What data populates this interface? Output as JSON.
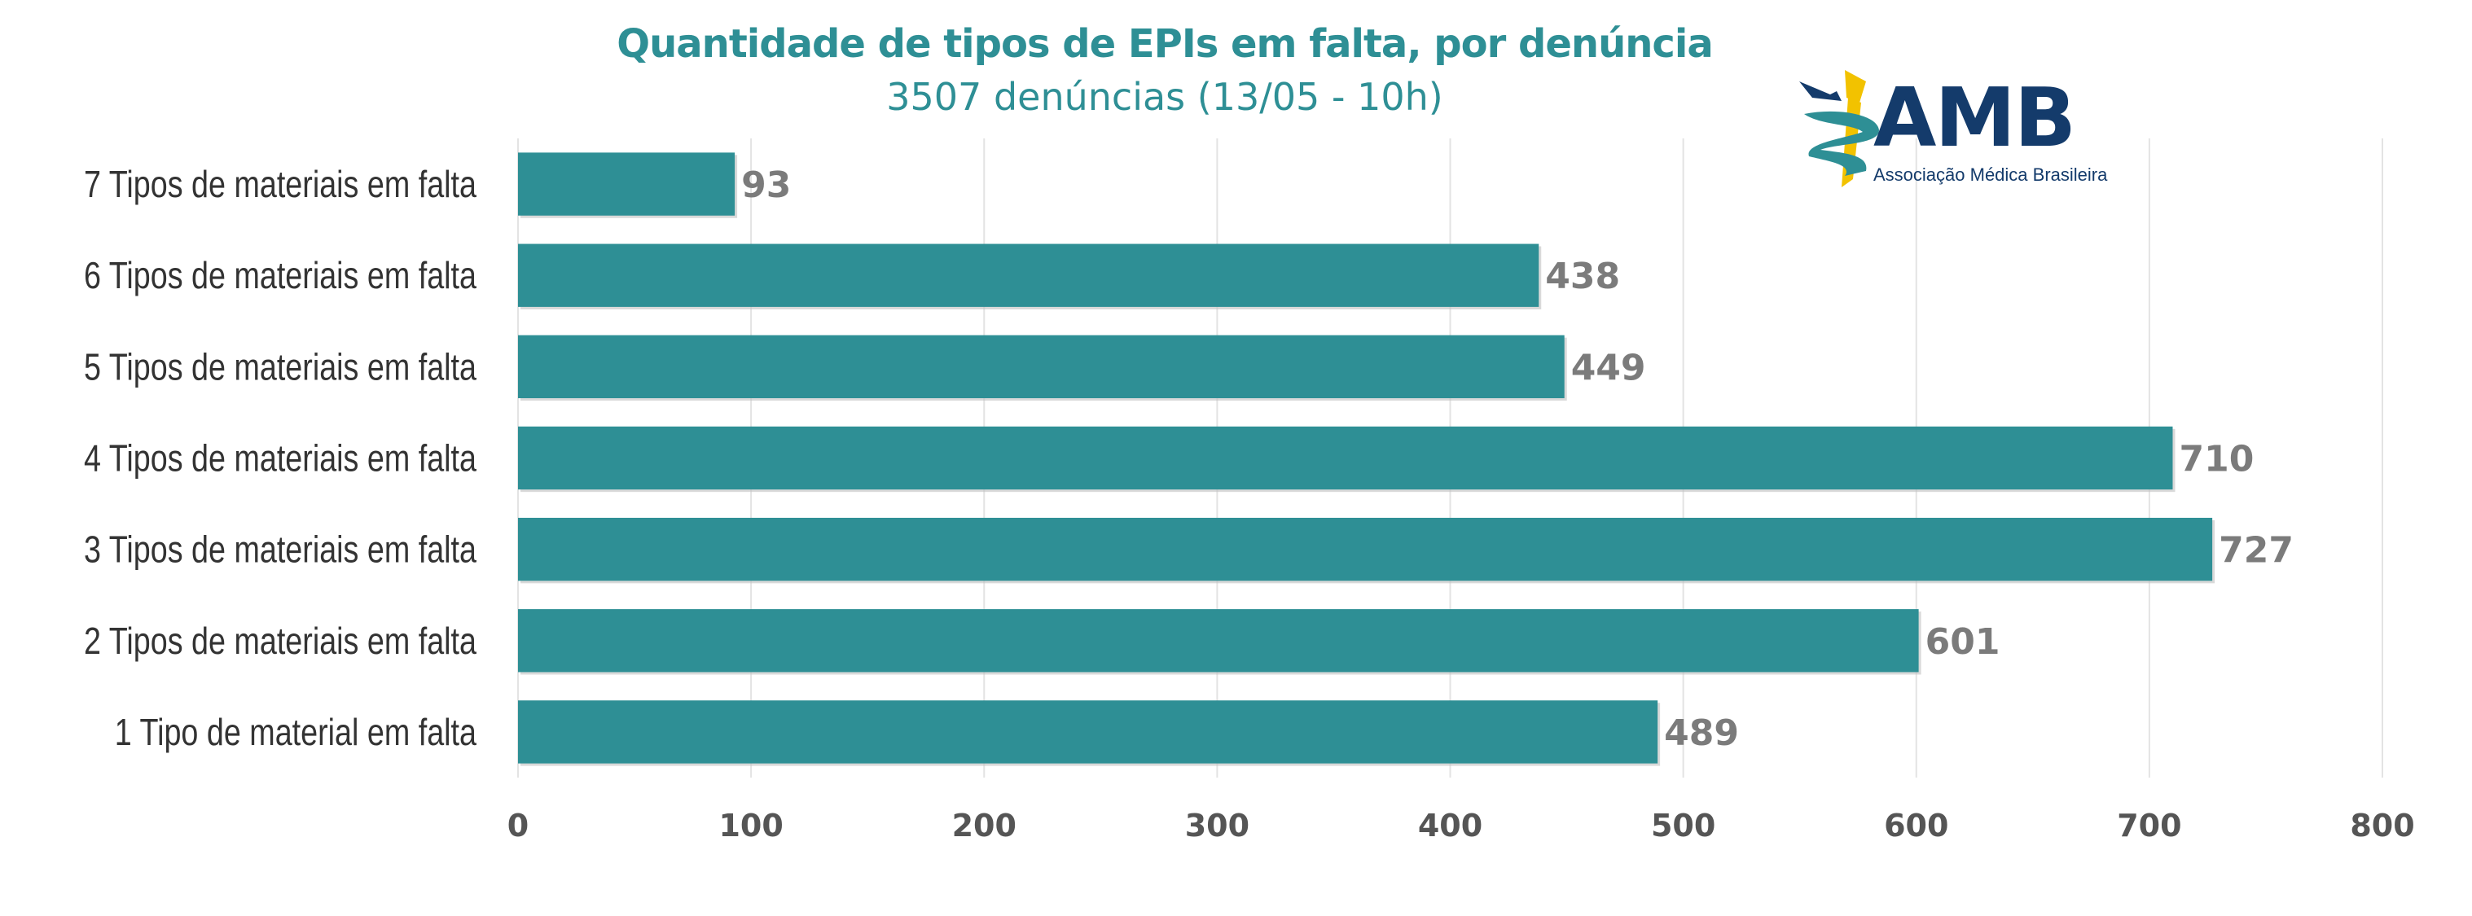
{
  "chart_data": {
    "type": "bar",
    "orientation": "horizontal",
    "title": "Quantidade de tipos de EPIs em falta, por denúncia",
    "subtitle": "3507 denúncias (13/05 - 10h)",
    "categories": [
      "7 Tipos de materiais em falta",
      "6 Tipos de materiais em falta",
      "5 Tipos de materiais em falta",
      "4 Tipos de materiais em falta",
      "3 Tipos de materiais em falta",
      "2 Tipos de materiais em falta",
      "1 Tipo de material em falta"
    ],
    "values": [
      93,
      438,
      449,
      710,
      727,
      601,
      489
    ],
    "xlim": [
      0,
      800
    ],
    "xticks": [
      0,
      100,
      200,
      300,
      400,
      500,
      600,
      700,
      800
    ],
    "grid": true,
    "bar_color": "#2e8f95",
    "xlabel": "",
    "ylabel": ""
  },
  "logo": {
    "name": "AMB",
    "subtitle": "Associação Médica Brasileira",
    "primary_color": "#143b6b",
    "accent_color": "#f2c200",
    "teal_color": "#2e8f95"
  }
}
